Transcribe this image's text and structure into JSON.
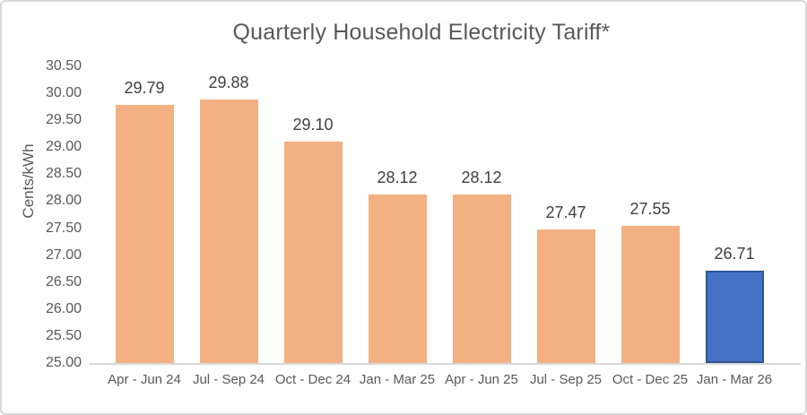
{
  "chart_data": {
    "type": "bar",
    "title": "Quarterly Household Electricity Tariff*",
    "ylabel": "Cents/kWh",
    "xlabel": "",
    "categories": [
      "Apr - Jun 24",
      "Jul - Sep 24",
      "Oct - Dec 24",
      "Jan - Mar 25",
      "Apr - Jun 25",
      "Jul - Sep 25",
      "Oct - Dec 25",
      "Jan - Mar 26"
    ],
    "values": [
      29.79,
      29.88,
      29.1,
      28.12,
      28.12,
      27.47,
      27.55,
      26.71
    ],
    "data_labels": [
      "29.79",
      "29.88",
      "29.10",
      "28.12",
      "28.12",
      "27.47",
      "27.55",
      "26.71"
    ],
    "highlight_index": 7,
    "ylim": [
      25.0,
      30.5
    ],
    "y_tick_step": 0.5,
    "y_ticks": [
      "30.50",
      "30.00",
      "29.50",
      "29.00",
      "28.50",
      "28.00",
      "27.50",
      "27.00",
      "26.50",
      "26.00",
      "25.50",
      "25.00"
    ],
    "grid": false,
    "legend": "none",
    "colors": {
      "bar_default": "#F3B083",
      "bar_highlight": "#4472C4",
      "bar_highlight_border": "#2F5597",
      "title_text": "#595959",
      "axis_text": "#595959",
      "data_label_text": "#404040",
      "axis_line": "#D9D9D9"
    }
  }
}
